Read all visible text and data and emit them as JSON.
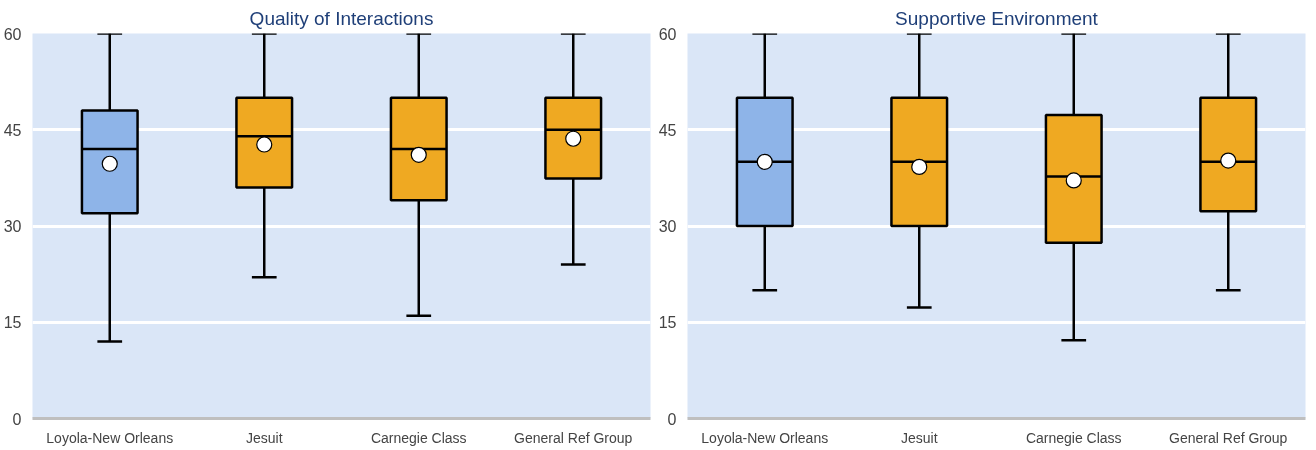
{
  "chart_data": [
    {
      "type": "box",
      "title": "Quality of Interactions",
      "categories": [
        "Loyola-New Orleans",
        "Jesuit",
        "Carnegie Class",
        "General Ref Group"
      ],
      "boxes": [
        {
          "low": 12,
          "q1": 32,
          "median": 42,
          "q3": 48,
          "high": 60,
          "mean": 39.7
        },
        {
          "low": 22,
          "q1": 36,
          "median": 44,
          "q3": 50,
          "high": 60,
          "mean": 42.7
        },
        {
          "low": 16,
          "q1": 34,
          "median": 42,
          "q3": 50,
          "high": 60,
          "mean": 41.1
        },
        {
          "low": 24,
          "q1": 37.4,
          "median": 45,
          "q3": 50,
          "high": 60,
          "mean": 43.6
        }
      ],
      "colors": [
        "#8eb4e8",
        "#efa922",
        "#efa922",
        "#efa922"
      ],
      "ylim": [
        0,
        60
      ],
      "yticks": [
        0,
        15,
        30,
        45,
        60
      ],
      "grid": "y"
    },
    {
      "type": "box",
      "title": "Supportive Environment",
      "categories": [
        "Loyola-New Orleans",
        "Jesuit",
        "Carnegie Class",
        "General Ref Group"
      ],
      "boxes": [
        {
          "low": 20,
          "q1": 30,
          "median": 40,
          "q3": 50,
          "high": 60,
          "mean": 40
        },
        {
          "low": 17.3,
          "q1": 30,
          "median": 40,
          "q3": 50,
          "high": 60,
          "mean": 39.2
        },
        {
          "low": 12.2,
          "q1": 27.4,
          "median": 37.7,
          "q3": 47.3,
          "high": 60,
          "mean": 37.1
        },
        {
          "low": 20,
          "q1": 32.3,
          "median": 40,
          "q3": 50,
          "high": 60,
          "mean": 40.2
        }
      ],
      "colors": [
        "#8eb4e8",
        "#efa922",
        "#efa922",
        "#efa922"
      ],
      "ylim": [
        0,
        60
      ],
      "yticks": [
        0,
        15,
        30,
        45,
        60
      ],
      "grid": "y"
    }
  ]
}
